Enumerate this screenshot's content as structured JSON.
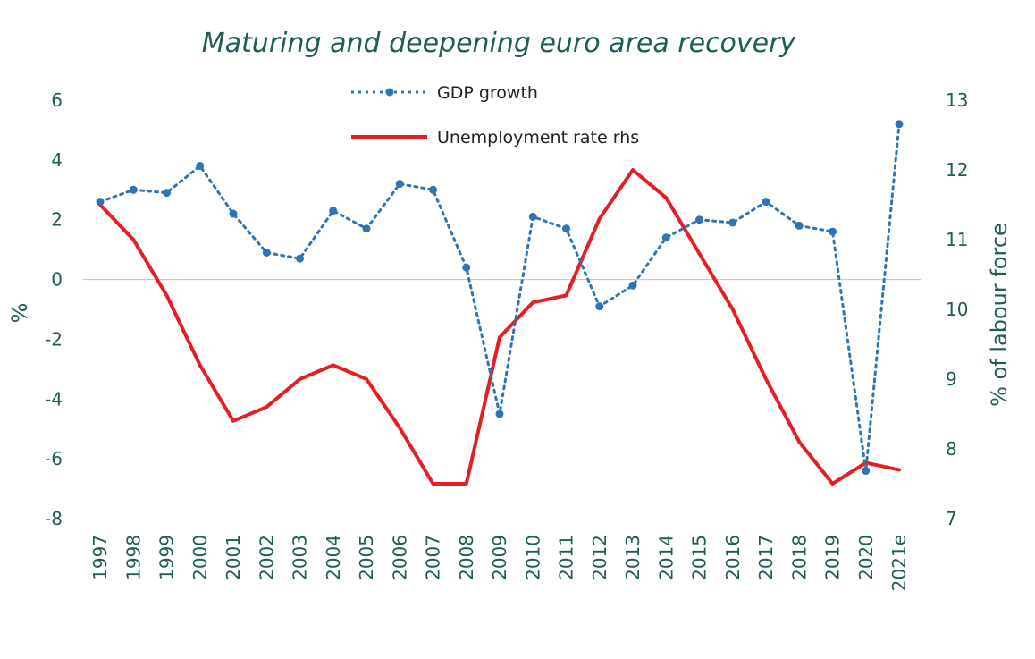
{
  "chart_data": {
    "type": "line",
    "title": "Maturing and deepening euro area recovery",
    "categories": [
      "1997",
      "1998",
      "1999",
      "2000",
      "2001",
      "2002",
      "2003",
      "2004",
      "2005",
      "2006",
      "2007",
      "2008",
      "2009",
      "2010",
      "2011",
      "2012",
      "2013",
      "2014",
      "2015",
      "2016",
      "2017",
      "2018",
      "2019",
      "2020",
      "2021e"
    ],
    "ylabel_left": "%",
    "ylabel_right": "% of labour force",
    "y_left_range": [
      -8,
      6
    ],
    "y_left_ticks": [
      "6",
      "4",
      "2",
      "0",
      "-2",
      "-4",
      "-6",
      "-8"
    ],
    "y_right_range": [
      7,
      13
    ],
    "y_right_ticks": [
      "13",
      "12",
      "11",
      "10",
      "9",
      "8",
      "7"
    ],
    "series": [
      {
        "name": "GDP growth",
        "axis": "left",
        "style": "dotted-markers",
        "color": "#2e75b6",
        "values": [
          2.6,
          3.0,
          2.9,
          3.8,
          2.2,
          0.9,
          0.7,
          2.3,
          1.7,
          3.2,
          3.0,
          0.4,
          -4.5,
          2.1,
          1.7,
          -0.9,
          -0.2,
          1.4,
          2.0,
          1.9,
          2.6,
          1.8,
          1.6,
          -6.4,
          5.2
        ]
      },
      {
        "name": "Unemployment rate rhs",
        "axis": "right",
        "style": "solid",
        "color": "#e31e24",
        "values": [
          11.5,
          11.0,
          10.2,
          9.2,
          8.4,
          8.6,
          9.0,
          9.2,
          9.0,
          8.3,
          7.5,
          7.5,
          9.6,
          10.1,
          10.2,
          11.3,
          12.0,
          11.6,
          10.8,
          10.0,
          9.0,
          8.1,
          7.5,
          7.8,
          7.7
        ]
      }
    ],
    "zero_line": true,
    "grid": false,
    "legend_position": "top-center"
  }
}
